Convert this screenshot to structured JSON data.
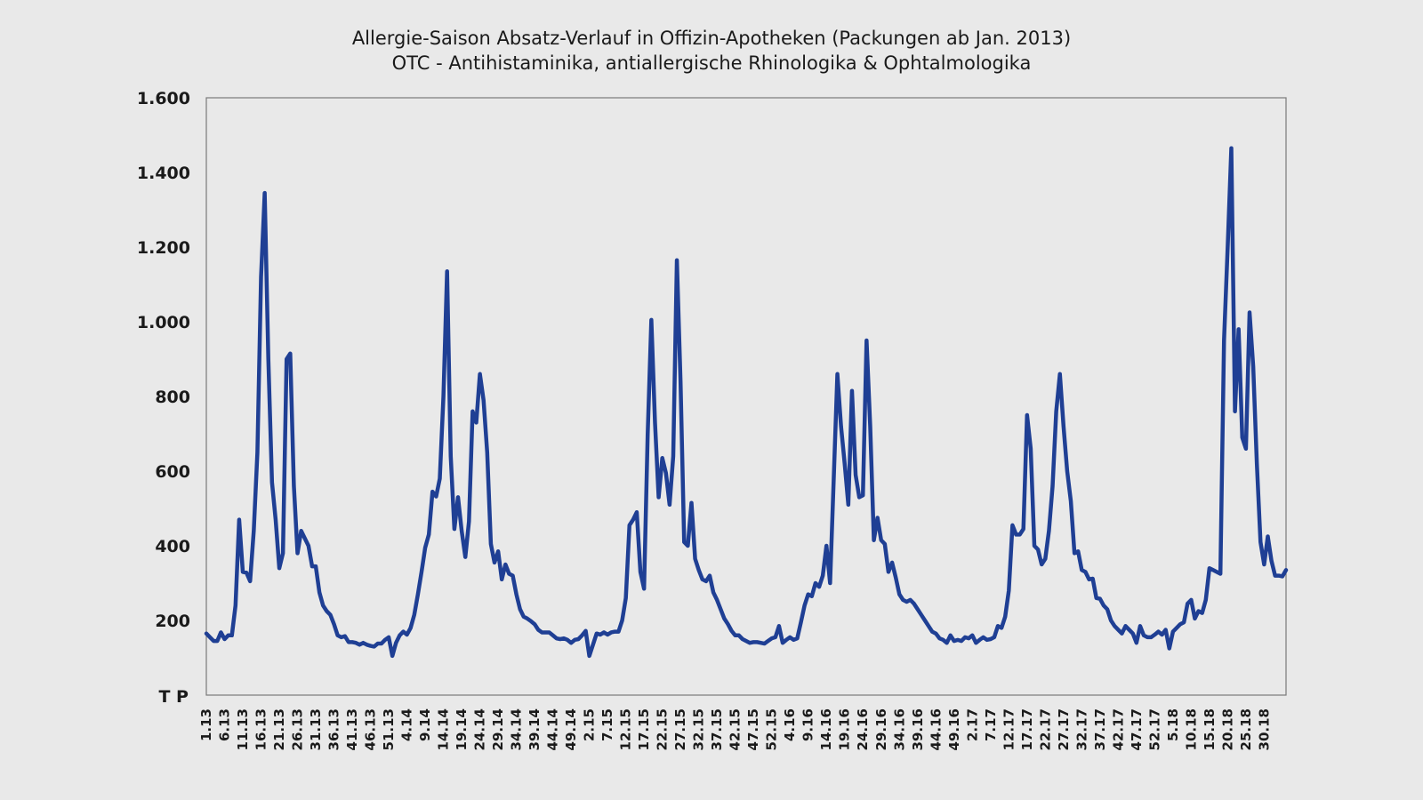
{
  "chart_data": {
    "type": "line",
    "title": "Allergie-Saison Absatz-Verlauf in Offizin-Apotheken (Packungen ab Jan. 2013)",
    "subtitle": "OTC - Antihistaminika, antiallergische Rhinologika & Ophtalmologika",
    "ylabel": "T P",
    "ylim": [
      0,
      1600
    ],
    "yticks": [
      200,
      400,
      600,
      800,
      1000,
      1200,
      1400,
      1600
    ],
    "ytick_labels": [
      "200",
      "400",
      "600",
      "800",
      "1.000",
      "1.200",
      "1.400",
      "1.600"
    ],
    "x_tick_labels": [
      "1.13",
      "6.13",
      "11.13",
      "16.13",
      "21.13",
      "26.13",
      "31.13",
      "36.13",
      "41.13",
      "46.13",
      "51.13",
      "4.14",
      "9.14",
      "14.14",
      "19.14",
      "24.14",
      "29.14",
      "34.14",
      "39.14",
      "44.14",
      "49.14",
      "2.15",
      "7.15",
      "12.15",
      "17.15",
      "22.15",
      "27.15",
      "32.15",
      "37.15",
      "42.15",
      "47.15",
      "52.15",
      "4.16",
      "9.16",
      "14.16",
      "19.16",
      "24.16",
      "29.16",
      "34.16",
      "39.16",
      "44.16",
      "49.16",
      "2.17",
      "7.17",
      "12.17",
      "17.17",
      "22.17",
      "27.17",
      "32.17",
      "37.17",
      "42.17",
      "47.17",
      "52.17",
      "5.18",
      "10.18",
      "15.18",
      "20.18",
      "25.18",
      "30.18"
    ],
    "tick_every": 5,
    "grid": false,
    "legend": "none",
    "line_color": "#1f3f94",
    "series": [
      {
        "values": [
          165,
          155,
          145,
          145,
          168,
          150,
          160,
          160,
          240,
          470,
          330,
          328,
          305,
          440,
          650,
          1120,
          1345,
          900,
          570,
          470,
          340,
          380,
          900,
          915,
          560,
          380,
          440,
          420,
          400,
          345,
          345,
          275,
          240,
          225,
          215,
          190,
          160,
          155,
          158,
          142,
          142,
          140,
          135,
          140,
          135,
          132,
          130,
          138,
          138,
          148,
          155,
          105,
          140,
          160,
          170,
          162,
          180,
          215,
          270,
          330,
          395,
          430,
          545,
          532,
          580,
          800,
          1135,
          640,
          445,
          530,
          440,
          370,
          465,
          760,
          730,
          860,
          790,
          650,
          405,
          355,
          385,
          310,
          350,
          325,
          320,
          270,
          230,
          210,
          205,
          198,
          190,
          175,
          168,
          168,
          168,
          160,
          152,
          150,
          152,
          148,
          140,
          148,
          150,
          160,
          172,
          105,
          135,
          165,
          162,
          168,
          162,
          168,
          170,
          170,
          200,
          260,
          455,
          470,
          490,
          330,
          285,
          700,
          1005,
          730,
          530,
          635,
          595,
          510,
          640,
          1165,
          840,
          410,
          400,
          515,
          365,
          335,
          310,
          305,
          320,
          275,
          255,
          230,
          205,
          190,
          172,
          160,
          160,
          150,
          145,
          140,
          142,
          142,
          140,
          138,
          145,
          152,
          155,
          185,
          140,
          148,
          155,
          148,
          152,
          195,
          240,
          270,
          265,
          300,
          290,
          320,
          400,
          300,
          580,
          860,
          720,
          620,
          510,
          815,
          590,
          530,
          535,
          950,
          720,
          415,
          475,
          415,
          405,
          330,
          355,
          315,
          270,
          255,
          250,
          255,
          245,
          230,
          215,
          200,
          185,
          170,
          165,
          152,
          148,
          140,
          160,
          145,
          148,
          145,
          155,
          152,
          160,
          140,
          148,
          155,
          148,
          150,
          155,
          185,
          180,
          210,
          280,
          455,
          430,
          430,
          445,
          750,
          660,
          400,
          390,
          350,
          365,
          440,
          560,
          760,
          860,
          720,
          600,
          520,
          380,
          385,
          335,
          330,
          310,
          312,
          260,
          258,
          240,
          230,
          200,
          185,
          175,
          165,
          185,
          175,
          165,
          140,
          185,
          160,
          155,
          155,
          162,
          170,
          162,
          175,
          125,
          170,
          180,
          190,
          195,
          245,
          255,
          205,
          225,
          220,
          255,
          340,
          335,
          330,
          325,
          950,
          1200,
          1465,
          760,
          980,
          690,
          660,
          1025,
          880,
          620,
          410,
          350,
          425,
          360,
          320,
          320,
          318,
          335
        ]
      }
    ]
  }
}
